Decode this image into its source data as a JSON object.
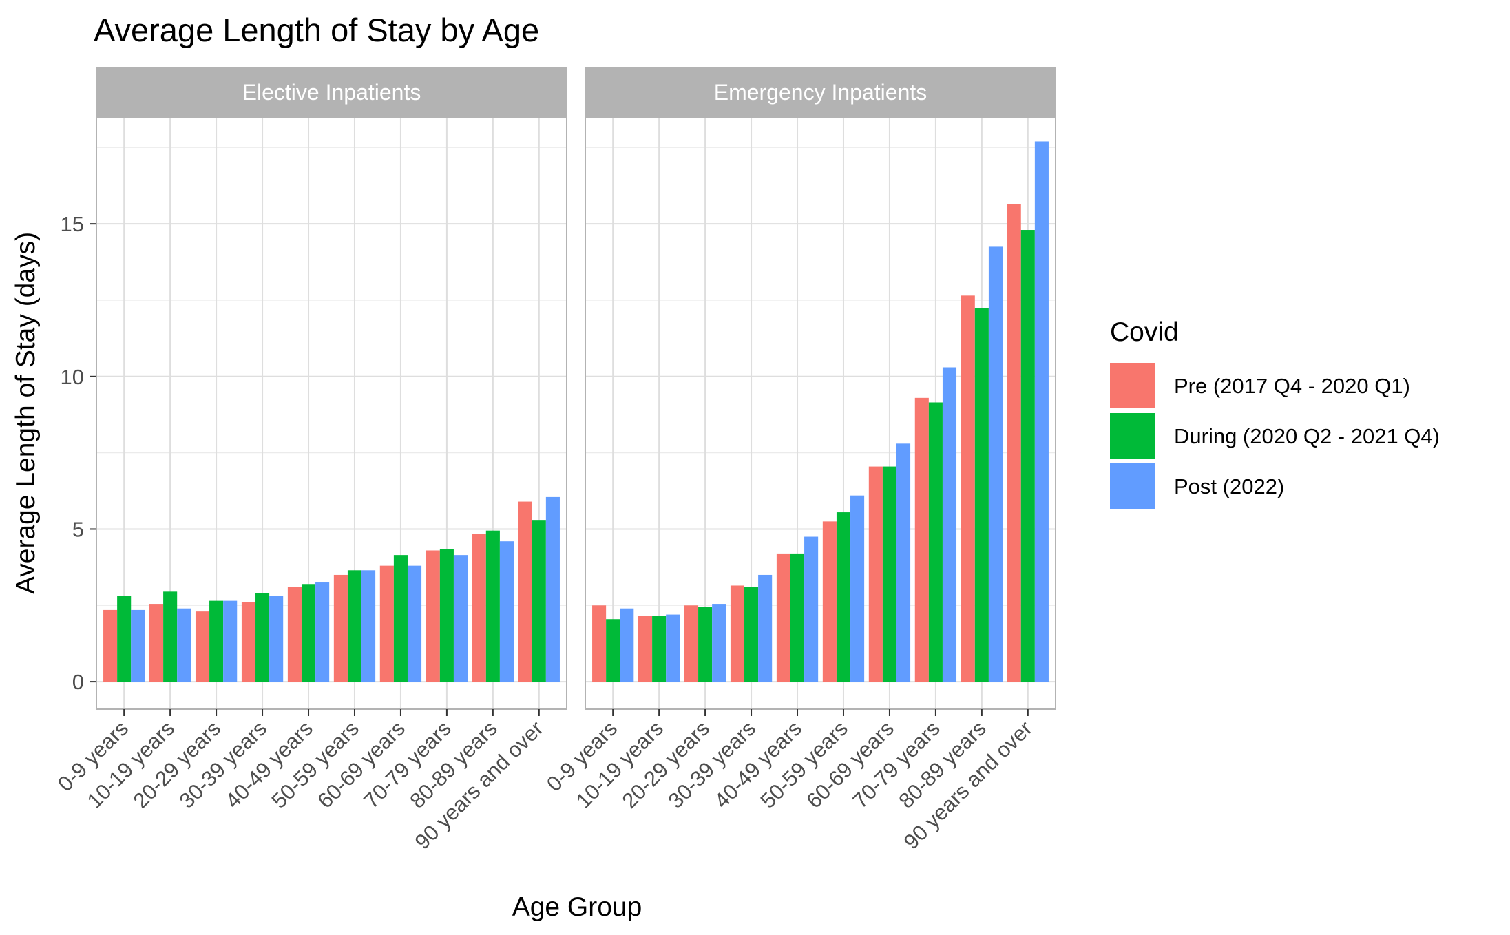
{
  "chart_data": {
    "type": "bar",
    "title": "Average Length of Stay by Age",
    "xlabel": "Age Group",
    "ylabel": "Average Length of Stay (days)",
    "ylim": [
      -0.9,
      18.5
    ],
    "yticks": [
      0,
      5,
      10,
      15
    ],
    "grid": true,
    "legend": {
      "title": "Covid",
      "position": "right",
      "entries": [
        "Pre (2017 Q4 - 2020 Q1)",
        "During (2020 Q2 - 2021 Q4)",
        "Post (2022)"
      ]
    },
    "colors": {
      "Pre (2017 Q4 - 2020 Q1)": "#F8766D",
      "During (2020 Q2 - 2021 Q4)": "#00BA38",
      "Post (2022)": "#619CFF",
      "strip": "#b3b3b3",
      "grid": "#ebebeb",
      "panel_border": "#b3b3b3"
    },
    "categories": [
      "0-9 years",
      "10-19 years",
      "20-29 years",
      "30-39 years",
      "40-49 years",
      "50-59 years",
      "60-69 years",
      "70-79 years",
      "80-89 years",
      "90 years and over"
    ],
    "panels": [
      {
        "name": "Elective Inpatients",
        "series": [
          {
            "name": "Pre (2017 Q4 - 2020 Q1)",
            "values": [
              2.35,
              2.55,
              2.3,
              2.6,
              3.1,
              3.5,
              3.8,
              4.3,
              4.85,
              5.9
            ]
          },
          {
            "name": "During (2020 Q2 - 2021 Q4)",
            "values": [
              2.8,
              2.95,
              2.65,
              2.9,
              3.2,
              3.65,
              4.15,
              4.35,
              4.95,
              5.3
            ]
          },
          {
            "name": "Post (2022)",
            "values": [
              2.35,
              2.4,
              2.65,
              2.8,
              3.25,
              3.65,
              3.8,
              4.15,
              4.6,
              6.05
            ]
          }
        ]
      },
      {
        "name": "Emergency Inpatients",
        "series": [
          {
            "name": "Pre (2017 Q4 - 2020 Q1)",
            "values": [
              2.5,
              2.15,
              2.5,
              3.15,
              4.2,
              5.25,
              7.05,
              9.3,
              12.65,
              15.65
            ]
          },
          {
            "name": "During (2020 Q2 - 2021 Q4)",
            "values": [
              2.05,
              2.15,
              2.45,
              3.1,
              4.2,
              5.55,
              7.05,
              9.15,
              12.25,
              14.8
            ]
          },
          {
            "name": "Post (2022)",
            "values": [
              2.4,
              2.2,
              2.55,
              3.5,
              4.75,
              6.1,
              7.8,
              10.3,
              14.25,
              17.7
            ]
          }
        ]
      }
    ]
  }
}
